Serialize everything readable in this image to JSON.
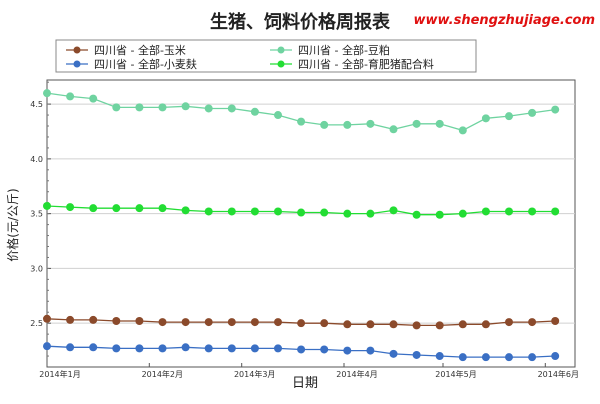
{
  "chart_data": {
    "type": "line",
    "title": "生猪、饲料价格周报表",
    "watermark": "www.shengzhujiage.com",
    "xlabel": "日期",
    "ylabel": "价格(元/公斤)",
    "ylim": [
      2.1,
      4.72
    ],
    "yticks": [
      2.5,
      3.0,
      3.5,
      4.0,
      4.5
    ],
    "ytick_labels": [
      "2.5",
      "3.0",
      "3.5",
      "4.0",
      "4.5"
    ],
    "xlim": [
      "2014-01-01",
      "2014-06-10"
    ],
    "xticks": [
      "2014-01-01",
      "2014-02-01",
      "2014-03-01",
      "2014-04-01",
      "2014-05-01",
      "2014-06-01"
    ],
    "xtick_labels": [
      "2014年1月",
      "2014年2月",
      "2014年3月",
      "2014年4月",
      "2014年5月",
      "2014年6月"
    ],
    "x": [
      "2014-01-01",
      "2014-01-08",
      "2014-01-15",
      "2014-01-22",
      "2014-01-29",
      "2014-02-05",
      "2014-02-12",
      "2014-02-19",
      "2014-02-26",
      "2014-03-05",
      "2014-03-12",
      "2014-03-19",
      "2014-03-26",
      "2014-04-02",
      "2014-04-09",
      "2014-04-16",
      "2014-04-23",
      "2014-04-30",
      "2014-05-07",
      "2014-05-14",
      "2014-05-21",
      "2014-05-28",
      "2014-06-04"
    ],
    "legend_position": "top",
    "series": [
      {
        "name": "四川省 - 全部-玉米",
        "color": "#8b4a2b",
        "values": [
          2.54,
          2.53,
          2.53,
          2.52,
          2.52,
          2.51,
          2.51,
          2.51,
          2.51,
          2.51,
          2.51,
          2.5,
          2.5,
          2.49,
          2.49,
          2.49,
          2.48,
          2.48,
          2.49,
          2.49,
          2.51,
          2.51,
          2.52
        ]
      },
      {
        "name": "四川省 - 全部-豆粕",
        "color": "#6fd3a0",
        "values": [
          4.6,
          4.57,
          4.55,
          4.47,
          4.47,
          4.47,
          4.48,
          4.46,
          4.46,
          4.43,
          4.4,
          4.34,
          4.31,
          4.31,
          4.32,
          4.27,
          4.32,
          4.32,
          4.26,
          4.37,
          4.39,
          4.42,
          4.45
        ]
      },
      {
        "name": "四川省 - 全部-小麦麸",
        "color": "#3a6fc4",
        "values": [
          2.29,
          2.28,
          2.28,
          2.27,
          2.27,
          2.27,
          2.28,
          2.27,
          2.27,
          2.27,
          2.27,
          2.26,
          2.26,
          2.25,
          2.25,
          2.22,
          2.21,
          2.2,
          2.19,
          2.19,
          2.19,
          2.19,
          2.2
        ]
      },
      {
        "name": "四川省 - 全部-育肥猪配合料",
        "color": "#22dd33",
        "values": [
          3.57,
          3.56,
          3.55,
          3.55,
          3.55,
          3.55,
          3.53,
          3.52,
          3.52,
          3.52,
          3.52,
          3.51,
          3.51,
          3.5,
          3.5,
          3.53,
          3.49,
          3.49,
          3.5,
          3.52,
          3.52,
          3.52,
          3.52
        ]
      }
    ]
  }
}
